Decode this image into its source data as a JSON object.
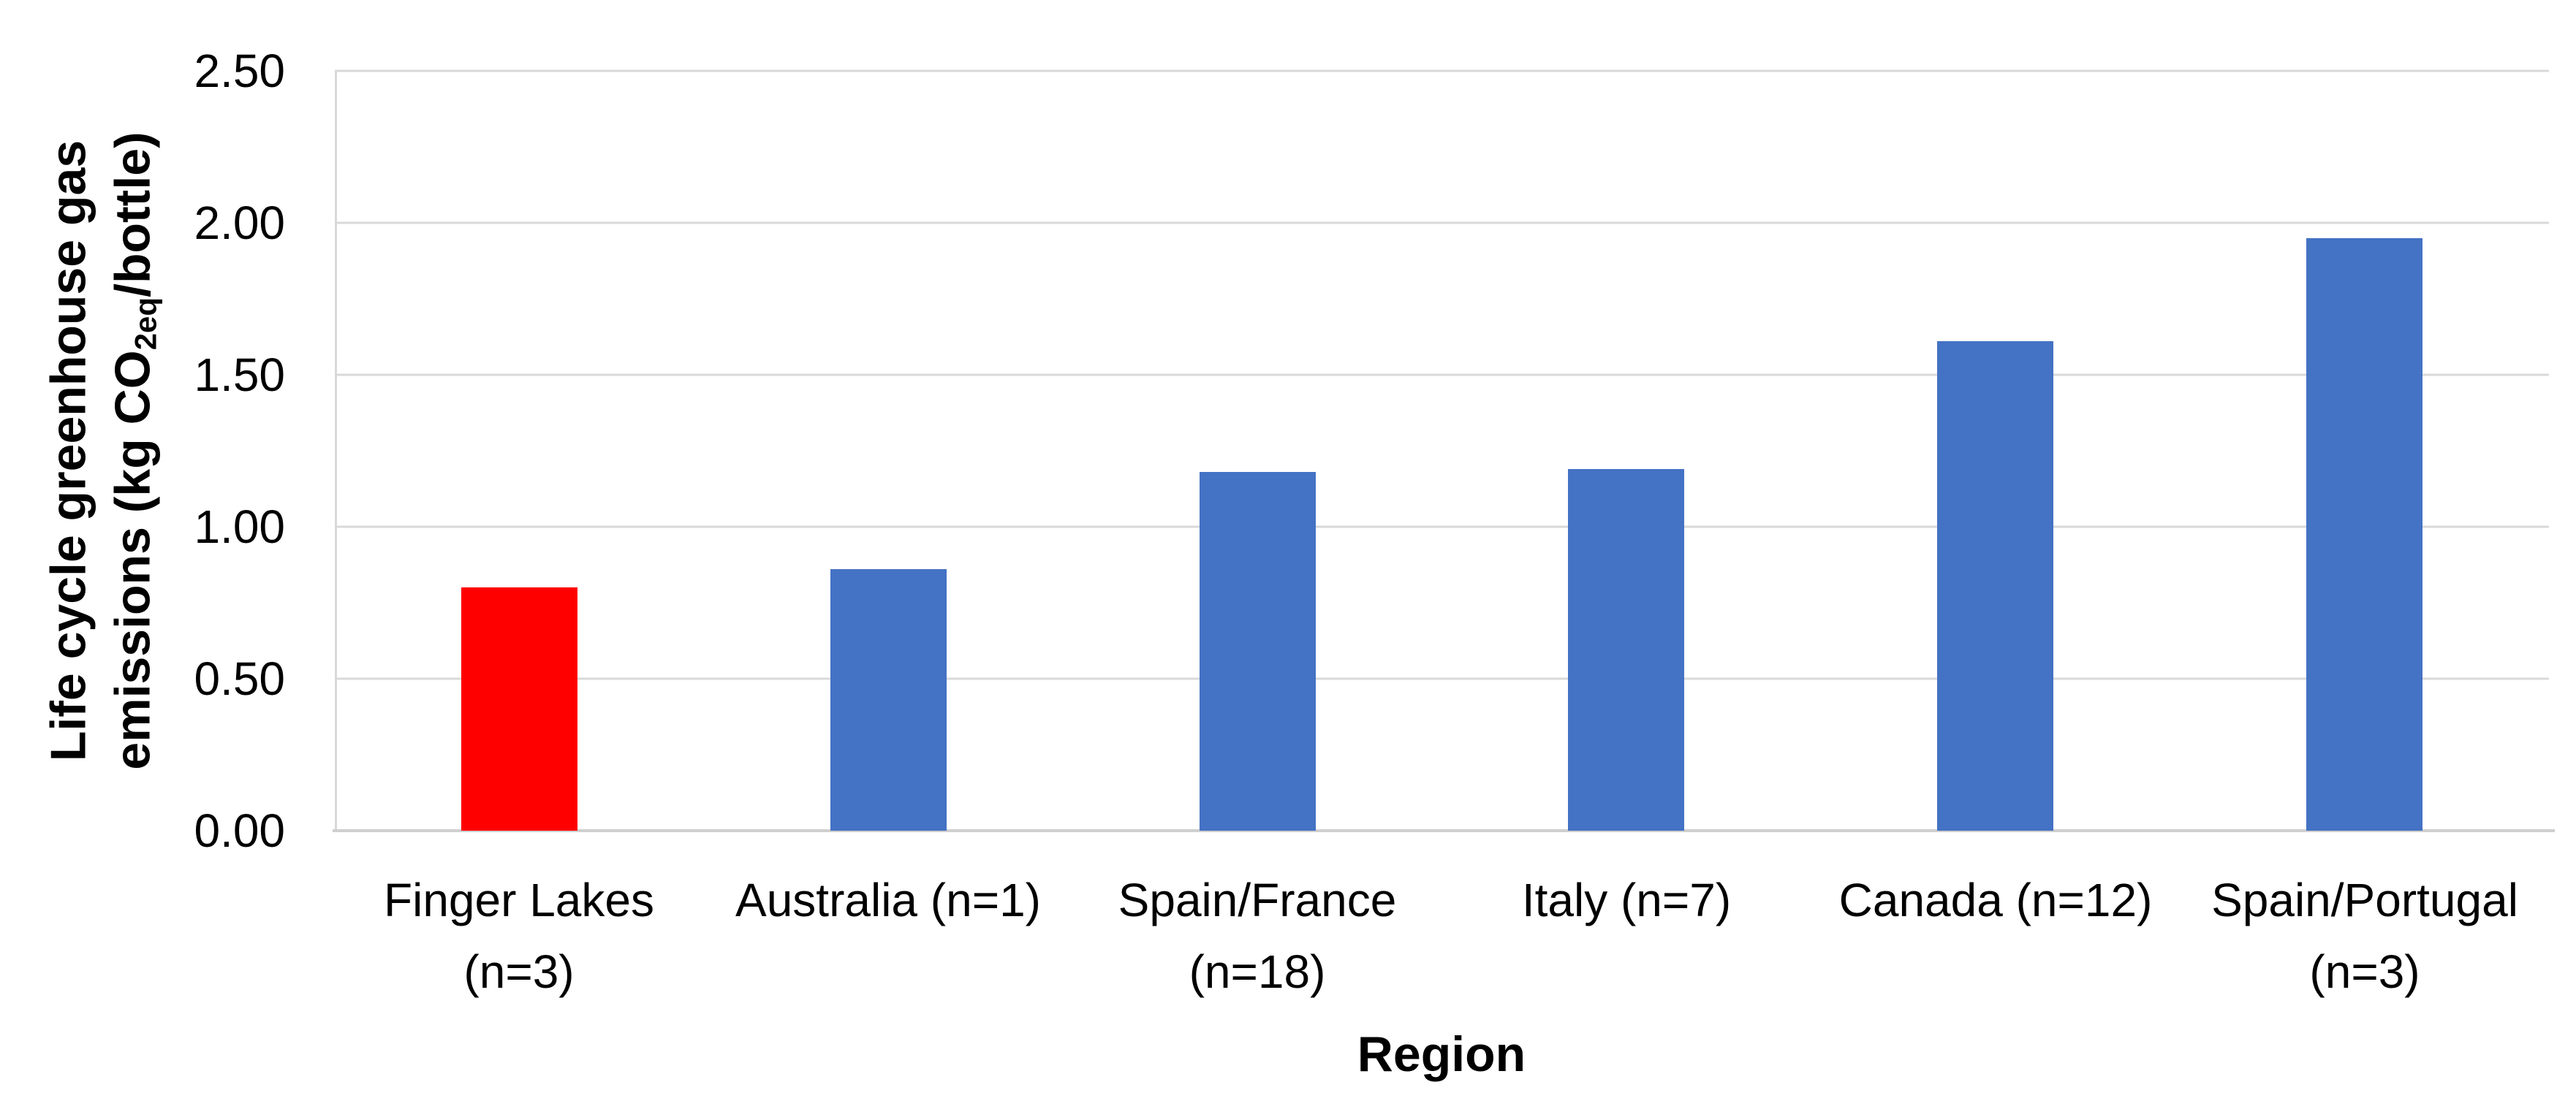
{
  "chart_data": {
    "type": "bar",
    "title": "",
    "xlabel": "Region",
    "ylabel": "Life cycle greenhouse gas emissions (kg CO2eq/bottle)",
    "ylabel_line1": "Life cycle greenhouse gas",
    "ylabel_line2_prefix": "emissions (kg CO",
    "ylabel_subscript": "2eq",
    "ylabel_line2_suffix": "/bottle)",
    "categories": [
      "Finger Lakes (n=3)",
      "Australia (n=1)",
      "Spain/France (n=18)",
      "Italy (n=7)",
      "Canada (n=12)",
      "Spain/Portugal (n=3)"
    ],
    "category_lines": [
      [
        "Finger Lakes",
        "(n=3)"
      ],
      [
        "Australia (n=1)"
      ],
      [
        "Spain/France",
        "(n=18)"
      ],
      [
        "Italy (n=7)"
      ],
      [
        "Canada (n=12)"
      ],
      [
        "Spain/Portugal",
        "(n=3)"
      ]
    ],
    "values": [
      0.8,
      0.86,
      1.18,
      1.19,
      1.61,
      1.95
    ],
    "bar_colors": [
      "#FF0000",
      "#4472C4",
      "#4472C4",
      "#4472C4",
      "#4472C4",
      "#4472C4"
    ],
    "highlight_color": "#FF0000",
    "default_bar_color": "#4472C4",
    "ylim": [
      0,
      2.5
    ],
    "y_ticks": [
      {
        "label": "0.00",
        "value": 0.0
      },
      {
        "label": "0.50",
        "value": 0.5
      },
      {
        "label": "1.00",
        "value": 1.0
      },
      {
        "label": "1.50",
        "value": 1.5
      },
      {
        "label": "2.00",
        "value": 2.0
      },
      {
        "label": "2.50",
        "value": 2.5
      }
    ],
    "grid": "horizontal",
    "gridline_color": "#D9D9D9",
    "axis_line_color": "#CFCFCF",
    "legend": "none"
  }
}
